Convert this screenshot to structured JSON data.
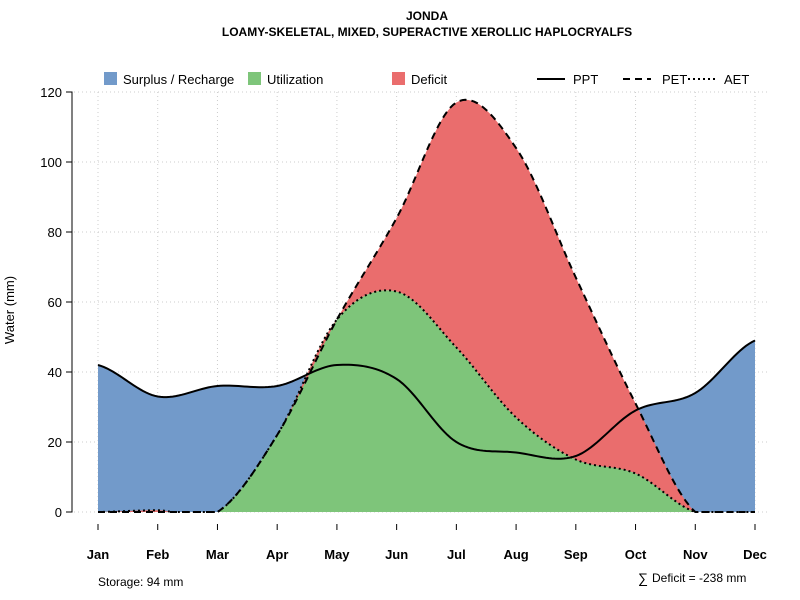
{
  "chart_data": {
    "type": "area",
    "title": "JONDA",
    "subtitle": "LOAMY-SKELETAL, MIXED, SUPERACTIVE XEROLLIC HAPLOCRYALFS",
    "xlabel": "",
    "ylabel": "Water (mm)",
    "ylim": [
      0,
      120
    ],
    "yticks": [
      0,
      20,
      40,
      60,
      80,
      100,
      120
    ],
    "categories": [
      "Jan",
      "Feb",
      "Mar",
      "Apr",
      "May",
      "Jun",
      "Jul",
      "Aug",
      "Sep",
      "Oct",
      "Nov",
      "Dec"
    ],
    "series": [
      {
        "name": "PPT",
        "style": "solid",
        "values": [
          42,
          33,
          36,
          36,
          42,
          38,
          20,
          17,
          16,
          29,
          34,
          49
        ]
      },
      {
        "name": "PET",
        "style": "dashed",
        "values": [
          0,
          0,
          0,
          22,
          55,
          84,
          117,
          104,
          67,
          31,
          0,
          0
        ]
      },
      {
        "name": "AET",
        "style": "dotted",
        "values": [
          0,
          0.5,
          0,
          22,
          55,
          63,
          47,
          27,
          15,
          11,
          0,
          0
        ]
      }
    ],
    "areas": [
      {
        "name": "Surplus / Recharge",
        "color": "#729ACA"
      },
      {
        "name": "Utilization",
        "color": "#7EC57A"
      },
      {
        "name": "Deficit",
        "color": "#EA6D6D"
      }
    ],
    "grid": true,
    "legend": "top",
    "annotations": {
      "storage": "Storage: 94 mm",
      "deficit": "Deficit = -238 mm",
      "sigma": "∑"
    }
  }
}
